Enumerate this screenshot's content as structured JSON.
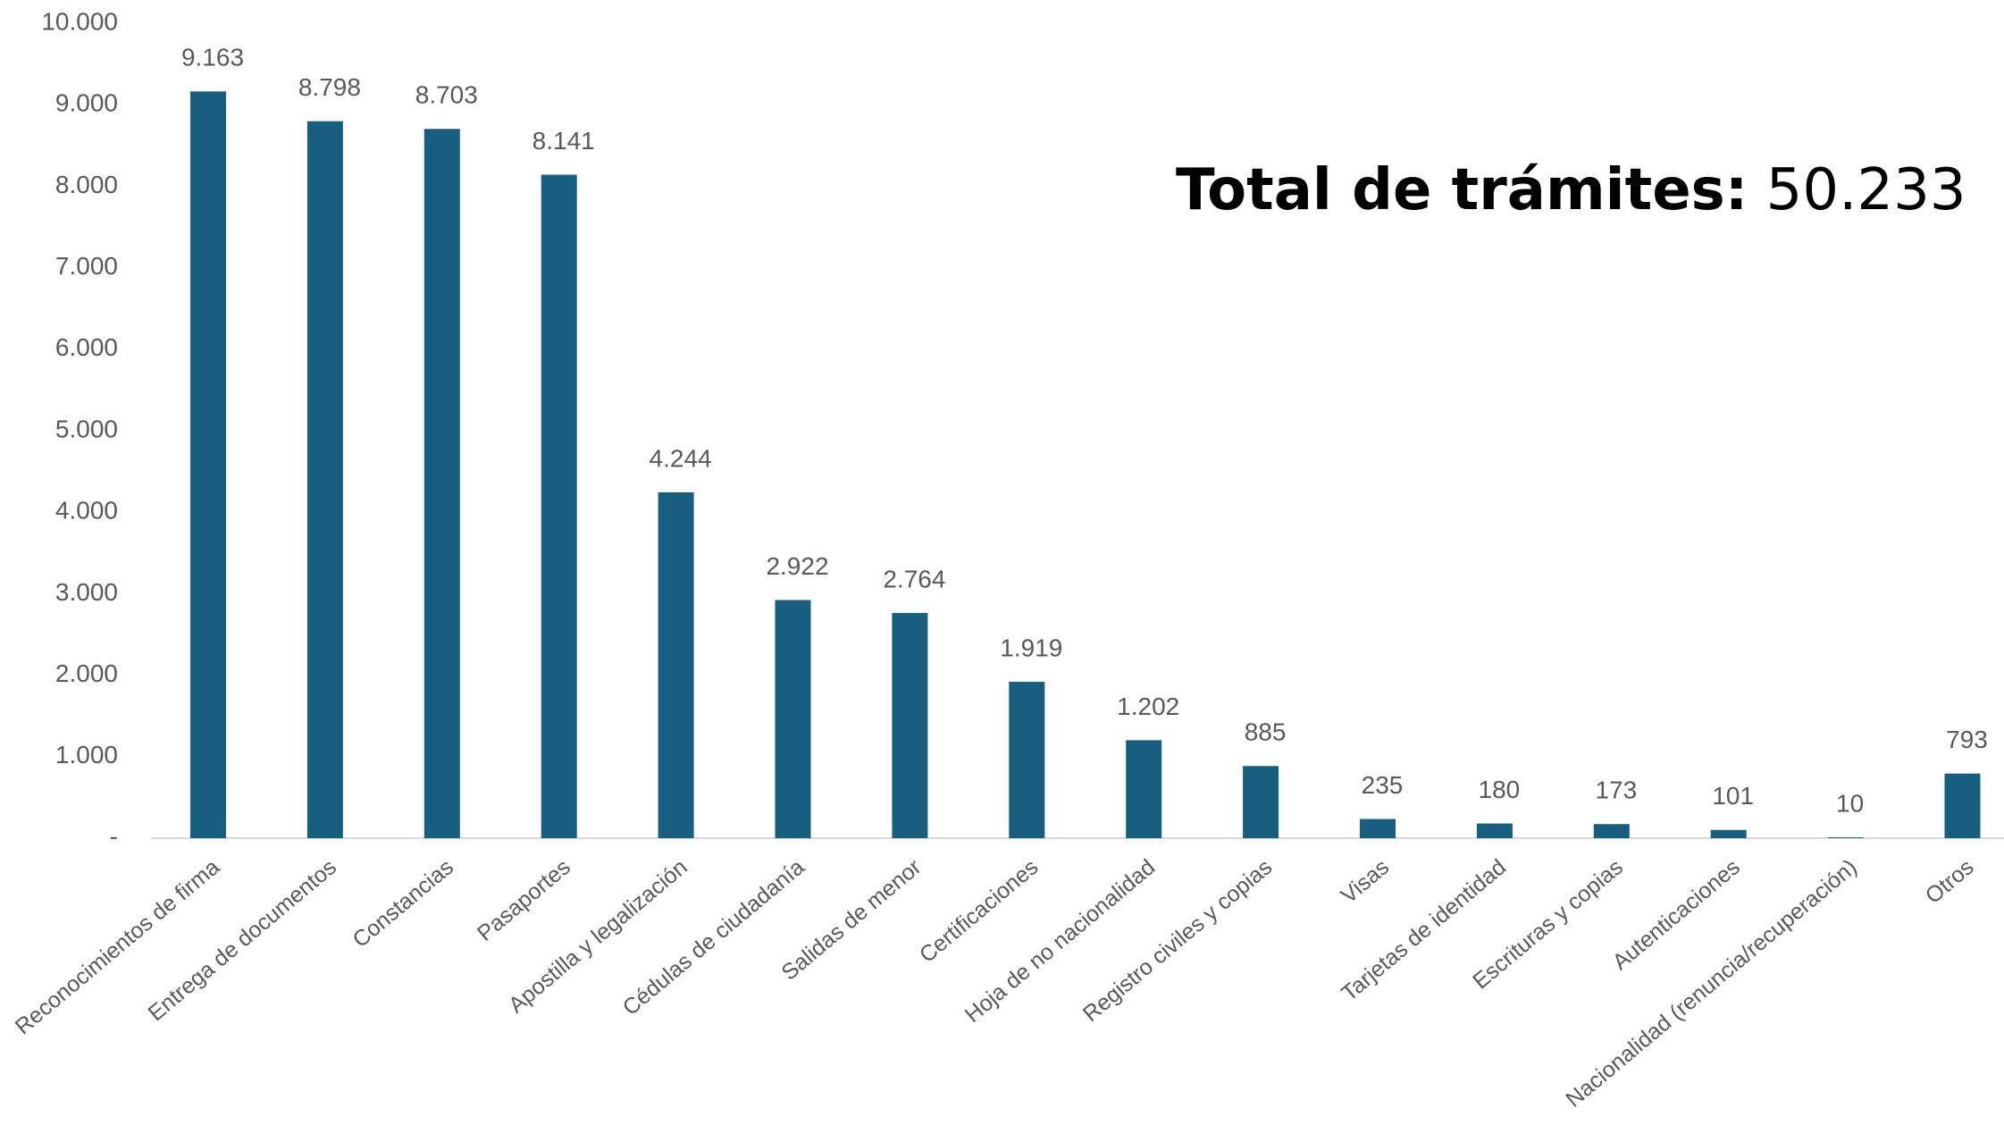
{
  "chart_data": {
    "type": "bar",
    "categories": [
      "Reconocimientos de firma",
      "Entrega de documentos",
      "Constancias",
      "Pasaportes",
      "Apostilla y legalización",
      "Cédulas de ciudadanía",
      "Salidas de menor",
      "Certificaciones",
      "Hoja de no nacionalidad",
      "Registro civiles y copias",
      "Visas",
      "Tarjetas de identidad",
      "Escrituras y copias",
      "Autenticaciones",
      "Nacionalidad (renuncia/recuperación)",
      "Otros"
    ],
    "values": [
      9163,
      8798,
      8703,
      8141,
      4244,
      2922,
      2764,
      1919,
      1202,
      885,
      235,
      180,
      173,
      101,
      10,
      793
    ],
    "value_labels": [
      "9.163",
      "8.798",
      "8.703",
      "8.141",
      "4.244",
      "2.922",
      "2.764",
      "1.919",
      "1.202",
      "885",
      "235",
      "180",
      "173",
      "101",
      "10",
      "793"
    ],
    "color": "#175e7f",
    "ylim": [
      0,
      10000
    ],
    "yticks": [
      {
        "value": 0,
        "label": "-"
      },
      {
        "value": 1000,
        "label": "1.000"
      },
      {
        "value": 2000,
        "label": "2.000"
      },
      {
        "value": 3000,
        "label": "3.000"
      },
      {
        "value": 4000,
        "label": "4.000"
      },
      {
        "value": 5000,
        "label": "5.000"
      },
      {
        "value": 6000,
        "label": "6.000"
      },
      {
        "value": 7000,
        "label": "7.000"
      },
      {
        "value": 8000,
        "label": "8.000"
      },
      {
        "value": 9000,
        "label": "9.000"
      },
      {
        "value": 10000,
        "label": "10.000"
      }
    ],
    "grid": false,
    "annotation": {
      "label": "Total de trámites:",
      "text": "50.233"
    }
  }
}
